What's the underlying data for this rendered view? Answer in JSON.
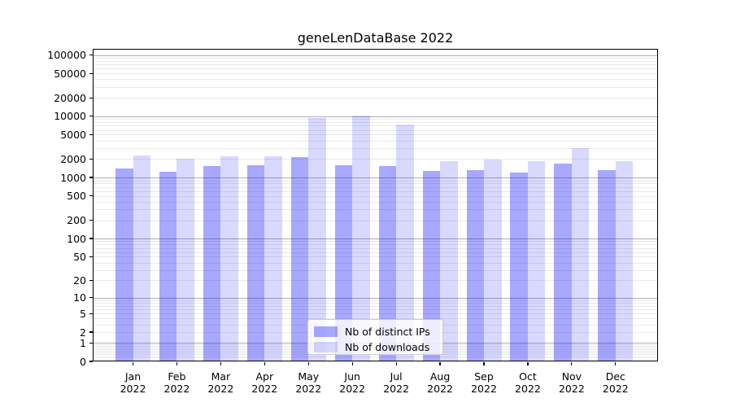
{
  "chart_data": {
    "type": "bar",
    "title": "geneLenDataBase 2022",
    "categories": [
      "Jan",
      "Feb",
      "Mar",
      "Apr",
      "May",
      "Jun",
      "Jul",
      "Aug",
      "Sep",
      "Oct",
      "Nov",
      "Dec"
    ],
    "x_year_label": "2022",
    "series": [
      {
        "name": "Nb of distinct IPs",
        "key": "ips",
        "color": "rgba(0,0,255,0.34)",
        "values": [
          1390,
          1260,
          1540,
          1570,
          2180,
          1580,
          1540,
          1270,
          1320,
          1210,
          1700,
          1320
        ]
      },
      {
        "name": "Nb of downloads",
        "key": "downloads",
        "color": "rgba(0,0,255,0.15)",
        "values": [
          2310,
          2000,
          2200,
          2240,
          9270,
          10160,
          7330,
          1870,
          1960,
          1830,
          3050,
          1870
        ]
      }
    ],
    "yscale": "log1p",
    "ylim": [
      0,
      125892
    ],
    "yticks": [
      100000,
      50000,
      20000,
      10000,
      5000,
      2000,
      1000,
      500,
      200,
      100,
      50,
      20,
      10,
      5,
      2,
      1,
      0
    ],
    "grid": {
      "major_color": "#b0b0b0",
      "minor_color": "#e9e9e9",
      "major_at": "powers of 10",
      "minor_at": "2-9 multiples per decade"
    },
    "legend": {
      "position": "lower center"
    },
    "axis_color": "#000000",
    "background": "#ffffff"
  }
}
